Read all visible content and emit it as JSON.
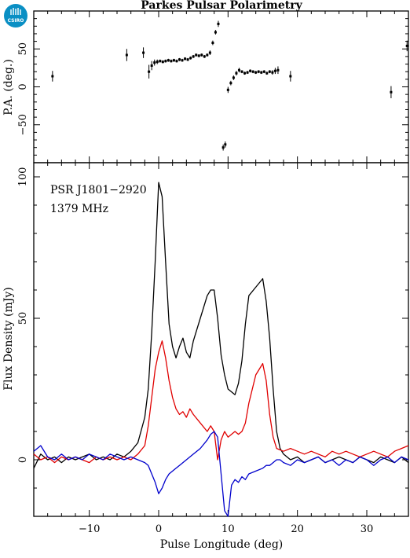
{
  "logo": {
    "text": "CSIRO",
    "color": "#0a8fc4"
  },
  "chart_data": [
    {
      "type": "scatter",
      "title": "Parkes Pulsar Polarimetry",
      "xlabel": "",
      "ylabel": "P.A. (deg.)",
      "xlim": [
        -18,
        36
      ],
      "ylim": [
        -100,
        100
      ],
      "yticks": [
        -50,
        0,
        50
      ],
      "ytick_labels": [
        "−50",
        "0",
        "50"
      ],
      "xticks": [
        -10,
        0,
        10,
        20,
        30
      ],
      "points": [
        {
          "x": -15.3,
          "y": 14,
          "err": 7
        },
        {
          "x": -4.6,
          "y": 42,
          "err": 8
        },
        {
          "x": -2.2,
          "y": 45,
          "err": 7
        },
        {
          "x": -1.4,
          "y": 20,
          "err": 9
        },
        {
          "x": -1.0,
          "y": 28,
          "err": 6
        },
        {
          "x": -0.6,
          "y": 32,
          "err": 4
        },
        {
          "x": -0.2,
          "y": 33,
          "err": 3
        },
        {
          "x": 0.2,
          "y": 34,
          "err": 2
        },
        {
          "x": 0.6,
          "y": 33,
          "err": 2
        },
        {
          "x": 1.0,
          "y": 34,
          "err": 2
        },
        {
          "x": 1.4,
          "y": 35,
          "err": 2
        },
        {
          "x": 1.8,
          "y": 34,
          "err": 2
        },
        {
          "x": 2.2,
          "y": 35,
          "err": 2
        },
        {
          "x": 2.6,
          "y": 34,
          "err": 2
        },
        {
          "x": 3.0,
          "y": 36,
          "err": 2
        },
        {
          "x": 3.4,
          "y": 35,
          "err": 2
        },
        {
          "x": 3.8,
          "y": 37,
          "err": 2
        },
        {
          "x": 4.2,
          "y": 36,
          "err": 2
        },
        {
          "x": 4.6,
          "y": 38,
          "err": 2
        },
        {
          "x": 5.0,
          "y": 40,
          "err": 2
        },
        {
          "x": 5.4,
          "y": 42,
          "err": 2
        },
        {
          "x": 5.8,
          "y": 41,
          "err": 2
        },
        {
          "x": 6.2,
          "y": 42,
          "err": 2
        },
        {
          "x": 6.6,
          "y": 40,
          "err": 2
        },
        {
          "x": 7.0,
          "y": 42,
          "err": 2
        },
        {
          "x": 7.4,
          "y": 45,
          "err": 3
        },
        {
          "x": 7.8,
          "y": 58,
          "err": 3
        },
        {
          "x": 8.2,
          "y": 72,
          "err": 3
        },
        {
          "x": 8.6,
          "y": 83,
          "err": 4
        },
        {
          "x": 9.3,
          "y": -80,
          "err": 4
        },
        {
          "x": 9.6,
          "y": -76,
          "err": 4
        },
        {
          "x": 10.0,
          "y": -4,
          "err": 4
        },
        {
          "x": 10.4,
          "y": 5,
          "err": 3
        },
        {
          "x": 10.8,
          "y": 12,
          "err": 3
        },
        {
          "x": 11.2,
          "y": 18,
          "err": 3
        },
        {
          "x": 11.6,
          "y": 22,
          "err": 3
        },
        {
          "x": 12.0,
          "y": 20,
          "err": 2
        },
        {
          "x": 12.4,
          "y": 18,
          "err": 2
        },
        {
          "x": 12.8,
          "y": 19,
          "err": 2
        },
        {
          "x": 13.2,
          "y": 21,
          "err": 2
        },
        {
          "x": 13.6,
          "y": 20,
          "err": 2
        },
        {
          "x": 14.0,
          "y": 19,
          "err": 2
        },
        {
          "x": 14.4,
          "y": 20,
          "err": 2
        },
        {
          "x": 14.8,
          "y": 19,
          "err": 2
        },
        {
          "x": 15.2,
          "y": 20,
          "err": 2
        },
        {
          "x": 15.6,
          "y": 18,
          "err": 2
        },
        {
          "x": 16.0,
          "y": 20,
          "err": 2
        },
        {
          "x": 16.4,
          "y": 19,
          "err": 3
        },
        {
          "x": 16.8,
          "y": 21,
          "err": 4
        },
        {
          "x": 17.2,
          "y": 22,
          "err": 5
        },
        {
          "x": 19.0,
          "y": 14,
          "err": 7
        },
        {
          "x": 33.5,
          "y": -7,
          "err": 8
        },
        {
          "x": 35.8,
          "y": 54,
          "err": 7
        }
      ]
    },
    {
      "type": "line",
      "title": "",
      "xlabel": "Pulse Longitude (deg)",
      "ylabel": "Flux Density (mJy)",
      "xlim": [
        -18,
        36
      ],
      "ylim": [
        -20,
        105
      ],
      "yticks": [
        0,
        50,
        100
      ],
      "xticks": [
        -10,
        0,
        10,
        20,
        30
      ],
      "annotations": [
        "PSR J1801−2920",
        "1379 MHz"
      ],
      "series": [
        {
          "color": "#000000",
          "points": [
            [
              -18,
              -3
            ],
            [
              -17,
              2
            ],
            [
              -16,
              0
            ],
            [
              -15,
              1
            ],
            [
              -14,
              -1
            ],
            [
              -13,
              1
            ],
            [
              -12,
              0
            ],
            [
              -11,
              1
            ],
            [
              -10,
              2
            ],
            [
              -9,
              0
            ],
            [
              -8,
              1
            ],
            [
              -7,
              0
            ],
            [
              -6,
              2
            ],
            [
              -5,
              1
            ],
            [
              -4,
              3
            ],
            [
              -3,
              6
            ],
            [
              -2,
              15
            ],
            [
              -1.5,
              25
            ],
            [
              -1,
              45
            ],
            [
              -0.5,
              70
            ],
            [
              0,
              98
            ],
            [
              0.5,
              93
            ],
            [
              1,
              70
            ],
            [
              1.5,
              48
            ],
            [
              2,
              40
            ],
            [
              2.5,
              36
            ],
            [
              3,
              40
            ],
            [
              3.5,
              43
            ],
            [
              4,
              38
            ],
            [
              4.5,
              36
            ],
            [
              5,
              42
            ],
            [
              6,
              50
            ],
            [
              7,
              58
            ],
            [
              7.5,
              60
            ],
            [
              8,
              60
            ],
            [
              8.5,
              50
            ],
            [
              9,
              37
            ],
            [
              9.5,
              30
            ],
            [
              10,
              25
            ],
            [
              10.5,
              24
            ],
            [
              11,
              23
            ],
            [
              11.5,
              27
            ],
            [
              12,
              35
            ],
            [
              12.5,
              48
            ],
            [
              13,
              58
            ],
            [
              14,
              61
            ],
            [
              15,
              64
            ],
            [
              15.5,
              56
            ],
            [
              16,
              43
            ],
            [
              16.5,
              25
            ],
            [
              17,
              10
            ],
            [
              17.5,
              4
            ],
            [
              18,
              2
            ],
            [
              19,
              0
            ],
            [
              20,
              1
            ],
            [
              21,
              -1
            ],
            [
              22,
              0
            ],
            [
              23,
              1
            ],
            [
              24,
              -1
            ],
            [
              25,
              0
            ],
            [
              26,
              1
            ],
            [
              27,
              0
            ],
            [
              28,
              -1
            ],
            [
              29,
              1
            ],
            [
              30,
              0
            ],
            [
              31,
              -1
            ],
            [
              32,
              1
            ],
            [
              33,
              0
            ],
            [
              34,
              -1
            ],
            [
              35,
              1
            ],
            [
              36,
              -1
            ]
          ]
        },
        {
          "color": "#e00000",
          "points": [
            [
              -18,
              2
            ],
            [
              -17,
              0
            ],
            [
              -16,
              1
            ],
            [
              -15,
              -1
            ],
            [
              -14,
              1
            ],
            [
              -13,
              0
            ],
            [
              -12,
              1
            ],
            [
              -11,
              0
            ],
            [
              -10,
              -1
            ],
            [
              -9,
              1
            ],
            [
              -8,
              0
            ],
            [
              -7,
              1
            ],
            [
              -6,
              0
            ],
            [
              -5,
              1
            ],
            [
              -4,
              0
            ],
            [
              -3,
              2
            ],
            [
              -2,
              5
            ],
            [
              -1.5,
              12
            ],
            [
              -1,
              22
            ],
            [
              -0.5,
              32
            ],
            [
              0,
              38
            ],
            [
              0.5,
              42
            ],
            [
              1,
              36
            ],
            [
              1.5,
              28
            ],
            [
              2,
              22
            ],
            [
              2.5,
              18
            ],
            [
              3,
              16
            ],
            [
              3.5,
              17
            ],
            [
              4,
              15
            ],
            [
              4.5,
              18
            ],
            [
              5,
              16
            ],
            [
              6,
              13
            ],
            [
              7,
              10
            ],
            [
              7.5,
              12
            ],
            [
              8,
              10
            ],
            [
              8.5,
              0
            ],
            [
              9,
              7
            ],
            [
              9.5,
              10
            ],
            [
              10,
              8
            ],
            [
              10.5,
              9
            ],
            [
              11,
              10
            ],
            [
              11.5,
              9
            ],
            [
              12,
              10
            ],
            [
              12.5,
              13
            ],
            [
              13,
              20
            ],
            [
              14,
              30
            ],
            [
              15,
              34
            ],
            [
              15.5,
              28
            ],
            [
              16,
              16
            ],
            [
              16.5,
              8
            ],
            [
              17,
              4
            ],
            [
              18,
              3
            ],
            [
              19,
              4
            ],
            [
              20,
              3
            ],
            [
              21,
              2
            ],
            [
              22,
              3
            ],
            [
              23,
              2
            ],
            [
              24,
              1
            ],
            [
              25,
              3
            ],
            [
              26,
              2
            ],
            [
              27,
              3
            ],
            [
              28,
              2
            ],
            [
              29,
              1
            ],
            [
              30,
              2
            ],
            [
              31,
              3
            ],
            [
              32,
              2
            ],
            [
              33,
              1
            ],
            [
              34,
              3
            ],
            [
              35,
              4
            ],
            [
              36,
              5
            ]
          ]
        },
        {
          "color": "#0000cc",
          "points": [
            [
              -18,
              3
            ],
            [
              -17,
              5
            ],
            [
              -16,
              1
            ],
            [
              -15,
              0
            ],
            [
              -14,
              2
            ],
            [
              -13,
              0
            ],
            [
              -12,
              1
            ],
            [
              -11,
              0
            ],
            [
              -10,
              2
            ],
            [
              -9,
              1
            ],
            [
              -8,
              0
            ],
            [
              -7,
              2
            ],
            [
              -6,
              1
            ],
            [
              -5,
              0
            ],
            [
              -4,
              1
            ],
            [
              -3,
              0
            ],
            [
              -2,
              -1
            ],
            [
              -1.5,
              -2
            ],
            [
              -1,
              -5
            ],
            [
              -0.5,
              -8
            ],
            [
              0,
              -12
            ],
            [
              0.5,
              -10
            ],
            [
              1,
              -7
            ],
            [
              1.5,
              -5
            ],
            [
              2,
              -4
            ],
            [
              2.5,
              -3
            ],
            [
              3,
              -2
            ],
            [
              3.5,
              -1
            ],
            [
              4,
              0
            ],
            [
              4.5,
              1
            ],
            [
              5,
              2
            ],
            [
              6,
              4
            ],
            [
              7,
              7
            ],
            [
              7.5,
              9
            ],
            [
              8,
              10
            ],
            [
              8.5,
              8
            ],
            [
              9,
              -5
            ],
            [
              9.5,
              -18
            ],
            [
              10,
              -20
            ],
            [
              10.5,
              -9
            ],
            [
              11,
              -7
            ],
            [
              11.5,
              -8
            ],
            [
              12,
              -6
            ],
            [
              12.5,
              -7
            ],
            [
              13,
              -5
            ],
            [
              14,
              -4
            ],
            [
              15,
              -3
            ],
            [
              15.5,
              -2
            ],
            [
              16,
              -2
            ],
            [
              16.5,
              -1
            ],
            [
              17,
              0
            ],
            [
              17.5,
              0
            ],
            [
              18,
              -1
            ],
            [
              19,
              -2
            ],
            [
              20,
              0
            ],
            [
              21,
              -1
            ],
            [
              22,
              0
            ],
            [
              23,
              1
            ],
            [
              24,
              -1
            ],
            [
              25,
              0
            ],
            [
              26,
              -2
            ],
            [
              27,
              0
            ],
            [
              28,
              -1
            ],
            [
              29,
              1
            ],
            [
              30,
              0
            ],
            [
              31,
              -2
            ],
            [
              32,
              0
            ],
            [
              33,
              1
            ],
            [
              34,
              -1
            ],
            [
              35,
              1
            ],
            [
              36,
              0
            ]
          ]
        }
      ]
    }
  ]
}
